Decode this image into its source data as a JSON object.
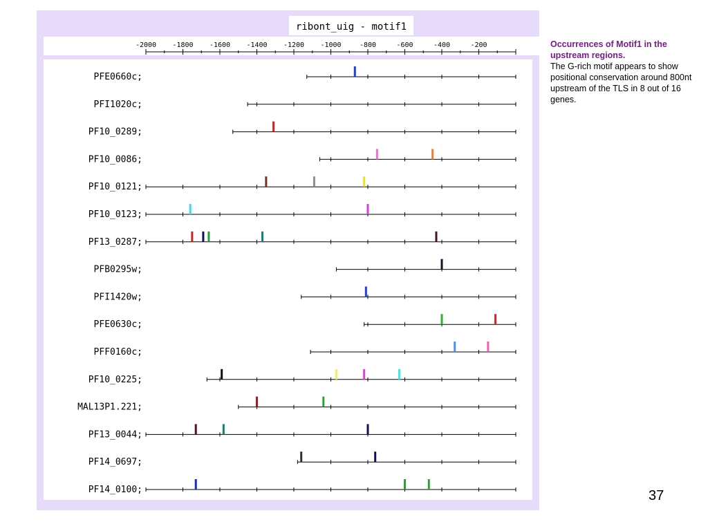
{
  "figure": {
    "title": "ribont_uig - motif1",
    "axis_ticks": [
      "-2000",
      "-1800",
      "-1600",
      "-1400",
      "-1200",
      "-1000",
      "-800",
      "-600",
      "-400",
      "-200"
    ]
  },
  "caption": {
    "title": "Occurrences of Motif1  in the upstream regions.",
    "body": "The G-rich motif appears to show positional conservation around 800nt upstream of the TLS in 8 out of 16 genes."
  },
  "page_number": "37",
  "chart_data": {
    "type": "motif-occurrence-map",
    "title": "ribont_uig - motif1",
    "x_unit": "nt upstream of TLS",
    "xlim": [
      -2000,
      0
    ],
    "genes": [
      {
        "name": "PFE0660c;",
        "region_start": -1130,
        "hits": [
          {
            "pos": -870,
            "color": "#1f3fd0"
          }
        ]
      },
      {
        "name": "PFI1020c;",
        "region_start": -1450,
        "hits": []
      },
      {
        "name": "PF10_0289;",
        "region_start": -1530,
        "hits": [
          {
            "pos": -1310,
            "color": "#d62020"
          }
        ]
      },
      {
        "name": "PF10_0086;",
        "region_start": -1060,
        "hits": [
          {
            "pos": -750,
            "color": "#f070d0"
          },
          {
            "pos": -450,
            "color": "#f08030"
          }
        ]
      },
      {
        "name": "PF10_0121;",
        "region_start": -2000,
        "hits": [
          {
            "pos": -1350,
            "color": "#7a3020"
          },
          {
            "pos": -1090,
            "color": "#909090"
          },
          {
            "pos": -820,
            "color": "#f0e020"
          }
        ]
      },
      {
        "name": "PF10_0123;",
        "region_start": -2000,
        "hits": [
          {
            "pos": -1760,
            "color": "#40d8f8"
          },
          {
            "pos": -800,
            "color": "#d040e0"
          }
        ]
      },
      {
        "name": "PF13_0287;",
        "region_start": -2000,
        "hits": [
          {
            "pos": -1750,
            "color": "#d02020"
          },
          {
            "pos": -1690,
            "color": "#10105a"
          },
          {
            "pos": -1660,
            "color": "#20a040"
          },
          {
            "pos": -1370,
            "color": "#108080"
          },
          {
            "pos": -430,
            "color": "#501020"
          }
        ]
      },
      {
        "name": "PFB0295w;",
        "region_start": -970,
        "hits": [
          {
            "pos": -400,
            "color": "#101030"
          }
        ]
      },
      {
        "name": "PFI1420w;",
        "region_start": -1160,
        "hits": [
          {
            "pos": -810,
            "color": "#2040e0"
          }
        ]
      },
      {
        "name": "PFE0630c;",
        "region_start": -820,
        "hits": [
          {
            "pos": -400,
            "color": "#30b030"
          },
          {
            "pos": -110,
            "color": "#e02020"
          }
        ]
      },
      {
        "name": "PFF0160c;",
        "region_start": -1110,
        "hits": [
          {
            "pos": -330,
            "color": "#5090e0"
          },
          {
            "pos": -150,
            "color": "#f060b0"
          }
        ]
      },
      {
        "name": "PF10_0225;",
        "region_start": -1670,
        "hits": [
          {
            "pos": -1590,
            "color": "#101010"
          },
          {
            "pos": -970,
            "color": "#f0f060"
          },
          {
            "pos": -820,
            "color": "#e040e0"
          },
          {
            "pos": -630,
            "color": "#40e8e0"
          }
        ]
      },
      {
        "name": "MAL13P1.221;",
        "region_start": -1500,
        "hits": [
          {
            "pos": -1400,
            "color": "#a02020"
          },
          {
            "pos": -1040,
            "color": "#30a030"
          }
        ]
      },
      {
        "name": "PF13_0044;",
        "region_start": -2000,
        "hits": [
          {
            "pos": -1730,
            "color": "#5a1020"
          },
          {
            "pos": -1580,
            "color": "#108070"
          },
          {
            "pos": -800,
            "color": "#10105a"
          }
        ]
      },
      {
        "name": "PF14_0697;",
        "region_start": -1180,
        "hits": [
          {
            "pos": -1160,
            "color": "#303030"
          },
          {
            "pos": -760,
            "color": "#101060"
          }
        ]
      },
      {
        "name": "PF14_0100;",
        "region_start": -2000,
        "hits": [
          {
            "pos": -1730,
            "color": "#1030c0"
          },
          {
            "pos": -600,
            "color": "#30a030"
          },
          {
            "pos": -470,
            "color": "#30a030"
          }
        ]
      }
    ]
  }
}
